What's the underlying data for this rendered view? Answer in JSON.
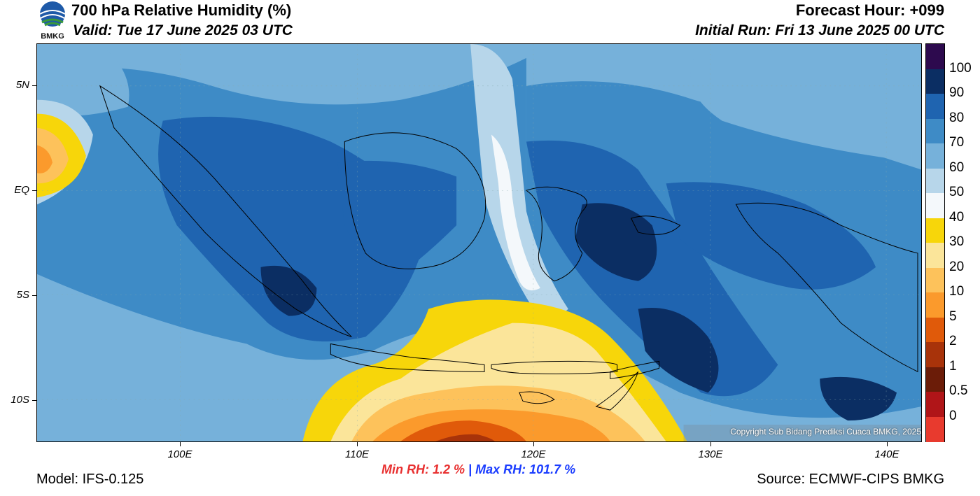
{
  "header": {
    "title": "700 hPa Relative Humidity (%)",
    "valid": "Valid: Tue 17 June 2025 03 UTC",
    "forecast_hour": "Forecast Hour: +099",
    "initial_run": "Initial Run: Fri 13 June 2025 00 UTC",
    "logo_text": "BMKG"
  },
  "map": {
    "lat_labels": [
      "5N",
      "EQ",
      "5S",
      "10S"
    ],
    "lon_labels": [
      "100E",
      "110E",
      "120E",
      "130E",
      "140E"
    ],
    "copyright": "Copyright Sub Bidang Prediksi Cuaca BMKG, 2025"
  },
  "colorbar": {
    "labels": [
      "100",
      "90",
      "80",
      "70",
      "60",
      "50",
      "40",
      "30",
      "20",
      "10",
      "5",
      "2",
      "1",
      "0.5",
      "0"
    ],
    "colors": [
      "#2d0a4e",
      "#0b2e63",
      "#1f64b0",
      "#3e8bc6",
      "#76b1da",
      "#b7d6ea",
      "#f4f8fb",
      "#f7d60a",
      "#fbe59a",
      "#fdc25b",
      "#fb9a2c",
      "#e05a0a",
      "#a8330a",
      "#6b1c08",
      "#b01518",
      "#e83a2e"
    ]
  },
  "footer": {
    "min_rh": "Min RH:   1.2 %",
    "separator": "|",
    "max_rh": "Max RH: 101.7 %",
    "model": "Model: IFS-0.125",
    "source": "Source: ECMWF-CIPS BMKG"
  }
}
